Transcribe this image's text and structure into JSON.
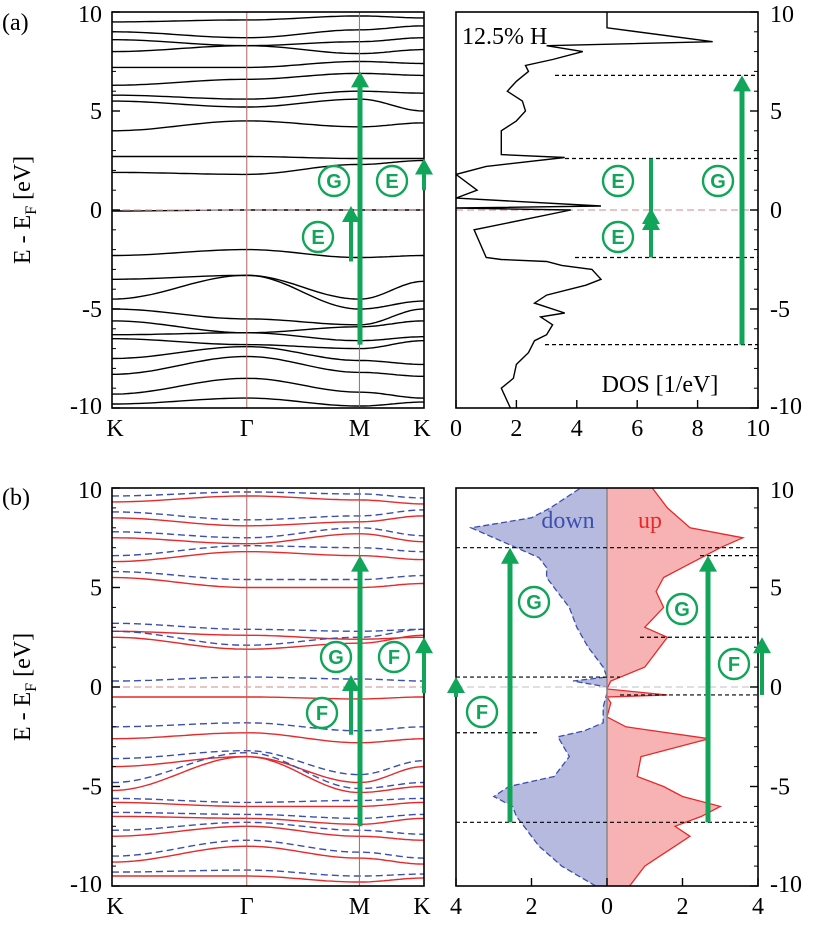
{
  "colors": {
    "band": "#000000",
    "up": "#e8282a",
    "down": "#3a4fb0",
    "arrow": "#10a558",
    "fermi": "#d9a0a0",
    "symline": "#b06060",
    "fill_up": "#f7b3b3",
    "fill_down": "#b6badf",
    "dash": "#000000"
  },
  "labels": {
    "panel_a": "(a)",
    "panel_b": "(b)",
    "ylabel": "E - E",
    "ylabel_sub": "F",
    "ylabel_unit": " [eV]",
    "conc_a": "12.5% H",
    "dos_xlabel": "DOS [1/eV]",
    "spin_down": "down",
    "spin_up": "up"
  },
  "kpath": [
    "K",
    "Γ",
    "M",
    "K"
  ],
  "chart_data": [
    {
      "panel": "a-bands",
      "type": "line",
      "xlabel": "",
      "ylabel": "E - E_F [eV]",
      "ylim": [
        -10,
        10
      ],
      "yticks": [
        10,
        5,
        0,
        -5,
        -10
      ],
      "x_ticks": [
        "K",
        "Γ",
        "M",
        "K"
      ],
      "series": [
        {
          "values": [
            -0.05,
            0,
            0,
            0
          ]
        },
        {
          "values": [
            -2.3,
            -2.0,
            -2.4,
            -2.3
          ]
        },
        {
          "values": [
            -3.5,
            -3.3,
            -4.5,
            -3.6
          ]
        },
        {
          "values": [
            -4.5,
            -3.3,
            -5.0,
            -4.6
          ]
        },
        {
          "values": [
            -5.0,
            -5.5,
            -5.8,
            -5.0
          ]
        },
        {
          "values": [
            -5.6,
            -6.2,
            -5.9,
            -5.6
          ]
        },
        {
          "values": [
            -6.3,
            -6.2,
            -6.6,
            -6.4
          ]
        },
        {
          "values": [
            -6.5,
            -6.8,
            -7.0,
            -6.6
          ]
        },
        {
          "values": [
            -7.5,
            -6.9,
            -7.6,
            -7.8
          ]
        },
        {
          "values": [
            -8.3,
            -7.4,
            -8.2,
            -8.4
          ]
        },
        {
          "values": [
            -9.3,
            -8.5,
            -9.2,
            -9.5
          ]
        },
        {
          "values": [
            -9.8,
            -9.5,
            -9.9,
            -9.7
          ]
        },
        {
          "values": [
            1.9,
            1.8,
            2.3,
            2.5
          ]
        },
        {
          "values": [
            2.7,
            2.7,
            2.6,
            2.6
          ]
        },
        {
          "values": [
            4.0,
            4.5,
            4.2,
            4.4
          ]
        },
        {
          "values": [
            5.5,
            5.2,
            5.6,
            5.0
          ]
        },
        {
          "values": [
            5.8,
            5.6,
            6.0,
            5.9
          ]
        },
        {
          "values": [
            6.3,
            6.6,
            6.9,
            6.8
          ]
        },
        {
          "values": [
            7.2,
            7.2,
            7.5,
            7.4
          ]
        },
        {
          "values": [
            8.0,
            8.3,
            7.9,
            8.1
          ]
        },
        {
          "values": [
            8.6,
            8.3,
            8.5,
            8.7
          ]
        },
        {
          "values": [
            9.0,
            8.7,
            9.1,
            9.3
          ]
        },
        {
          "values": [
            9.5,
            9.6,
            9.8,
            9.7
          ]
        }
      ]
    },
    {
      "panel": "a-dos",
      "type": "line",
      "xlabel": "DOS [1/eV]",
      "xlim": [
        0,
        10
      ],
      "xticks": [
        0,
        2,
        4,
        6,
        8,
        10
      ],
      "ylim": [
        -10,
        10
      ],
      "yticks": [
        10,
        5,
        0,
        -5,
        -10
      ],
      "x": [
        1.8,
        1.5,
        1.9,
        2.0,
        2.4,
        2.6,
        3.0,
        3.2,
        2.8,
        3.6,
        2.6,
        3.0,
        4.3,
        4.8,
        4.5,
        3.5,
        3.0,
        1.5,
        1.0,
        0.6,
        3.8,
        0.0,
        4.8,
        0.0,
        0.7,
        0.0,
        1.0,
        3.6,
        1.5,
        1.5,
        2.0,
        2.3,
        2.2,
        1.7,
        2.0,
        2.4,
        2.3,
        3.2,
        4.2,
        3.0,
        8.5,
        5.0,
        5.0
      ],
      "y": [
        -10,
        -9.0,
        -8.5,
        -7.8,
        -7.2,
        -6.6,
        -6.3,
        -5.8,
        -5.4,
        -5.2,
        -4.7,
        -4.3,
        -3.8,
        -3.5,
        -3.0,
        -2.8,
        -2.6,
        -2.5,
        -2.4,
        -1.0,
        0.0,
        0.1,
        0.2,
        0.6,
        1.0,
        1.8,
        2.2,
        2.65,
        2.8,
        4.0,
        4.5,
        5.0,
        5.5,
        6.0,
        6.5,
        7.0,
        7.3,
        7.6,
        8.0,
        8.3,
        8.5,
        9.2,
        10
      ]
    },
    {
      "panel": "b-bands",
      "type": "line",
      "ylabel": "E - E_F [eV]",
      "ylim": [
        -10,
        10
      ],
      "yticks": [
        10,
        5,
        0,
        -5,
        -10
      ],
      "x_ticks": [
        "K",
        "Γ",
        "M",
        "K"
      ],
      "series": [
        {
          "name": "up",
          "values": [
            -0.5,
            -0.5,
            -0.6,
            -0.5
          ]
        },
        {
          "name": "up",
          "values": [
            -2.6,
            -2.3,
            -2.8,
            -2.6
          ]
        },
        {
          "name": "up",
          "values": [
            -4.0,
            -3.5,
            -4.8,
            -4.0
          ]
        },
        {
          "name": "up",
          "values": [
            -5.2,
            -3.5,
            -5.3,
            -5.0
          ]
        },
        {
          "name": "up",
          "values": [
            -5.8,
            -6.0,
            -6.0,
            -5.8
          ]
        },
        {
          "name": "up",
          "values": [
            -6.5,
            -6.6,
            -6.9,
            -6.6
          ]
        },
        {
          "name": "up",
          "values": [
            -7.5,
            -7.0,
            -7.5,
            -7.7
          ]
        },
        {
          "name": "up",
          "values": [
            -8.8,
            -8.0,
            -8.6,
            -8.9
          ]
        },
        {
          "name": "up",
          "values": [
            -9.5,
            -9.5,
            -9.8,
            -9.6
          ]
        },
        {
          "name": "up",
          "values": [
            2.5,
            1.9,
            2.2,
            2.6
          ]
        },
        {
          "name": "up",
          "values": [
            2.8,
            2.6,
            2.4,
            2.5
          ]
        },
        {
          "name": "up",
          "values": [
            5.5,
            5.0,
            5.0,
            5.2
          ]
        },
        {
          "name": "up",
          "values": [
            6.3,
            6.8,
            6.6,
            6.4
          ]
        },
        {
          "name": "up",
          "values": [
            7.5,
            7.2,
            7.7,
            7.3
          ]
        },
        {
          "name": "up",
          "values": [
            8.5,
            8.1,
            8.3,
            8.6
          ]
        },
        {
          "name": "up",
          "values": [
            9.3,
            9.6,
            9.4,
            9.2
          ]
        },
        {
          "name": "down",
          "values": [
            0.3,
            0.5,
            0.4,
            0.3
          ]
        },
        {
          "name": "down",
          "values": [
            -2.0,
            -1.8,
            -2.2,
            -2.0
          ]
        },
        {
          "name": "down",
          "values": [
            -3.6,
            -3.2,
            -4.4,
            -3.7
          ]
        },
        {
          "name": "down",
          "values": [
            -4.8,
            -3.3,
            -5.1,
            -4.8
          ]
        },
        {
          "name": "down",
          "values": [
            -5.6,
            -5.8,
            -5.7,
            -5.6
          ]
        },
        {
          "name": "down",
          "values": [
            -6.3,
            -6.4,
            -6.6,
            -6.4
          ]
        },
        {
          "name": "down",
          "values": [
            -7.2,
            -6.8,
            -7.2,
            -7.4
          ]
        },
        {
          "name": "down",
          "values": [
            -8.5,
            -7.7,
            -8.3,
            -8.6
          ]
        },
        {
          "name": "down",
          "values": [
            -9.3,
            -9.2,
            -9.5,
            -9.4
          ]
        },
        {
          "name": "down",
          "values": [
            2.8,
            2.1,
            2.5,
            2.9
          ]
        },
        {
          "name": "down",
          "values": [
            3.2,
            2.9,
            2.8,
            2.9
          ]
        },
        {
          "name": "down",
          "values": [
            5.8,
            5.4,
            5.4,
            5.6
          ]
        },
        {
          "name": "down",
          "values": [
            6.6,
            7.1,
            7.0,
            6.8
          ]
        },
        {
          "name": "down",
          "values": [
            7.8,
            7.5,
            8.0,
            7.6
          ]
        },
        {
          "name": "down",
          "values": [
            8.8,
            8.4,
            8.6,
            8.9
          ]
        },
        {
          "name": "down",
          "values": [
            9.6,
            9.8,
            9.7,
            9.5
          ]
        }
      ]
    },
    {
      "panel": "b-dos",
      "type": "area",
      "xlim": [
        -4,
        4
      ],
      "xticks": [
        4,
        2,
        0,
        2,
        4
      ],
      "ylim": [
        -10,
        10
      ],
      "yticks": [
        10,
        5,
        0,
        -5,
        -10
      ],
      "series": [
        {
          "name": "down",
          "values": [
            0.3,
            1.2,
            1.5,
            1.8,
            2.0,
            2.2,
            2.4,
            2.5,
            3.0,
            2.6,
            1.4,
            1.0,
            1.3,
            0.6,
            0.1,
            0.1,
            0.0,
            0.0,
            0.9,
            0.0,
            0.1,
            0.5,
            0.8,
            1.0,
            1.2,
            1.4,
            1.6,
            1.6,
            1.8,
            2.4,
            3.0,
            3.6,
            2.0,
            1.5,
            0.7
          ],
          "y": [
            -10,
            -9.0,
            -8.5,
            -8.0,
            -7.5,
            -7.0,
            -6.5,
            -6.0,
            -5.5,
            -5.0,
            -4.5,
            -3.5,
            -2.5,
            -2.2,
            -1.8,
            -1.0,
            -0.3,
            0.0,
            0.3,
            0.5,
            1.0,
            2.0,
            3.0,
            4.0,
            4.5,
            5.0,
            5.5,
            6.0,
            6.5,
            7.0,
            7.5,
            8.0,
            8.5,
            9.0,
            10
          ]
        },
        {
          "name": "up",
          "values": [
            0.6,
            1.0,
            1.4,
            1.8,
            2.2,
            1.8,
            2.5,
            3.0,
            2.0,
            1.5,
            0.8,
            0.9,
            2.7,
            0.5,
            0.0,
            0.1,
            0.0,
            1.6,
            0.0,
            0.1,
            1.0,
            1.6,
            1.0,
            1.5,
            1.3,
            1.5,
            2.0,
            2.5,
            3.0,
            3.6,
            2.2,
            1.6,
            1.2
          ],
          "y": [
            -10,
            -9.0,
            -8.5,
            -8.0,
            -7.5,
            -7.0,
            -6.5,
            -6.0,
            -5.5,
            -5.0,
            -4.5,
            -3.5,
            -2.6,
            -2.0,
            -1.5,
            -0.8,
            -0.5,
            -0.4,
            -0.1,
            0.3,
            1.0,
            2.5,
            3.0,
            4.0,
            4.8,
            5.5,
            6.0,
            6.5,
            7.0,
            7.5,
            8.0,
            9.0,
            10
          ]
        }
      ]
    }
  ]
}
